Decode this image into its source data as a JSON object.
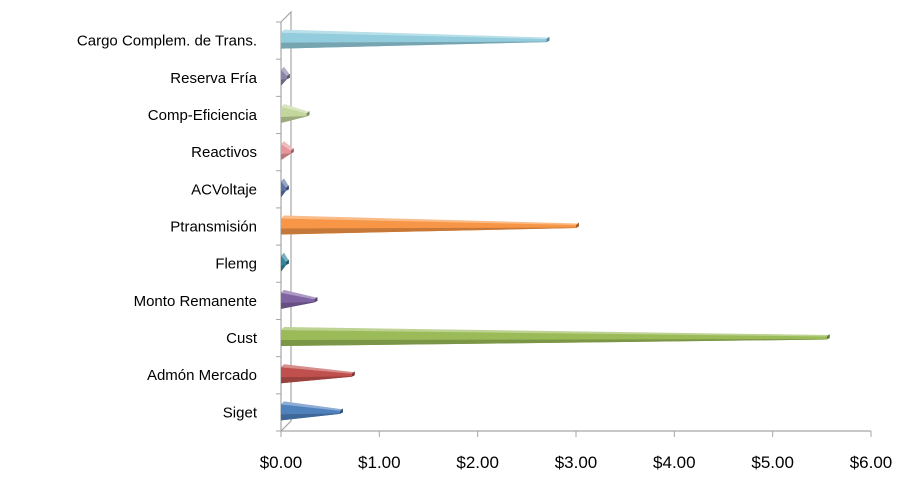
{
  "chart_data": {
    "type": "bar",
    "orientation": "horizontal",
    "style": "3d-cone-bar",
    "categories": [
      "Siget",
      "Admón Mercado",
      "Cust",
      "Monto Remanente",
      "Flemg",
      "Ptransmisión",
      "ACVoltaje",
      "Reactivos",
      "Comp-Eficiencia",
      "Reserva Fría",
      "Cargo Complem. de Trans."
    ],
    "values": [
      0.6,
      0.72,
      5.55,
      0.34,
      0.05,
      3.0,
      0.05,
      0.1,
      0.26,
      0.06,
      2.7
    ],
    "colors": [
      "#4f81bd",
      "#c0504d",
      "#9bbb59",
      "#8064a2",
      "#31859c",
      "#f79646",
      "#5a74a8",
      "#e6969b",
      "#c3d69b",
      "#8b82a8",
      "#93cddd"
    ],
    "xlim": [
      0,
      6
    ],
    "xticks": [
      "$0.00",
      "$1.00",
      "$2.00",
      "$3.00",
      "$4.00",
      "$5.00",
      "$6.00"
    ],
    "title": "",
    "xlabel": "",
    "ylabel": "",
    "grid": false,
    "legend": "none"
  }
}
